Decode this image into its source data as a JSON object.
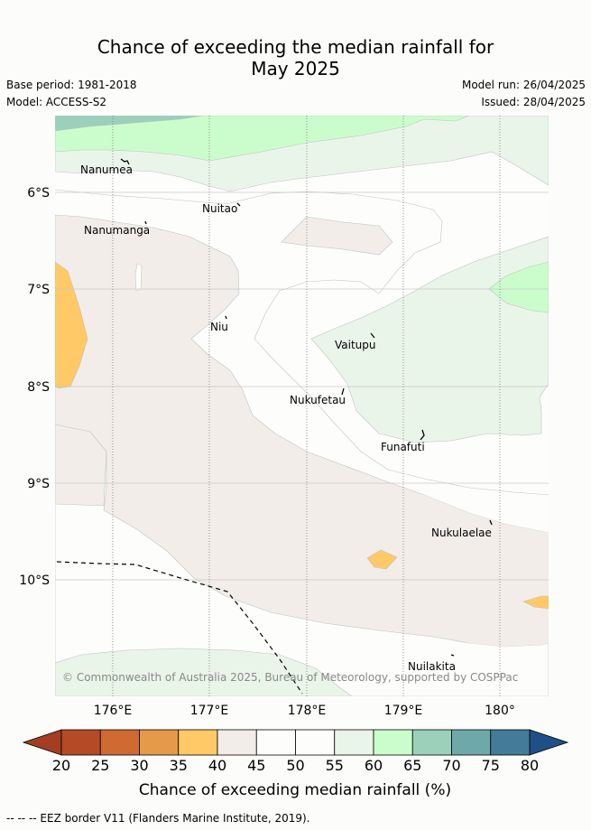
{
  "header": {
    "title_line1": "Chance of exceeding the median rainfall for",
    "title_line2": "May 2025",
    "base_period": "Base period: 1981-2018",
    "model": "Model: ACCESS-S2",
    "model_run": "Model run: 26/04/2025",
    "issued": "Issued: 28/04/2025"
  },
  "map": {
    "lon_labels": [
      "176°E",
      "177°E",
      "178°E",
      "179°E",
      "180°"
    ],
    "lat_labels": [
      "6°S",
      "7°S",
      "8°S",
      "9°S",
      "10°S"
    ],
    "islands": [
      "Nanumea",
      "Nuitao",
      "Nanumanga",
      "Niu",
      "Vaitupu",
      "Nukufetau",
      "Funafuti",
      "Nukulaelae",
      "Nuilakita"
    ],
    "copyright": "© Commonwealth of Australia 2025, Bureau of Meteorology, supported by COSPPac"
  },
  "colorbar": {
    "ticks": [
      "20",
      "25",
      "30",
      "35",
      "40",
      "45",
      "50",
      "55",
      "60",
      "65",
      "70",
      "75",
      "80"
    ],
    "colors": [
      "#b54a27",
      "#cf6a33",
      "#e59a4a",
      "#fec966",
      "#f2ede9",
      "#fdfefc",
      "#fdfefc",
      "#eaf5ea",
      "#cbfdcc",
      "#9bd0bb",
      "#6fa8a9",
      "#437b98"
    ],
    "under_color": "#a33e22",
    "over_color": "#1e4f87",
    "label": "Chance of exceeding median rainfall (%)"
  },
  "footnote": "--  --  -- EEZ border V11 (Flanders Marine Institute, 2019)."
}
